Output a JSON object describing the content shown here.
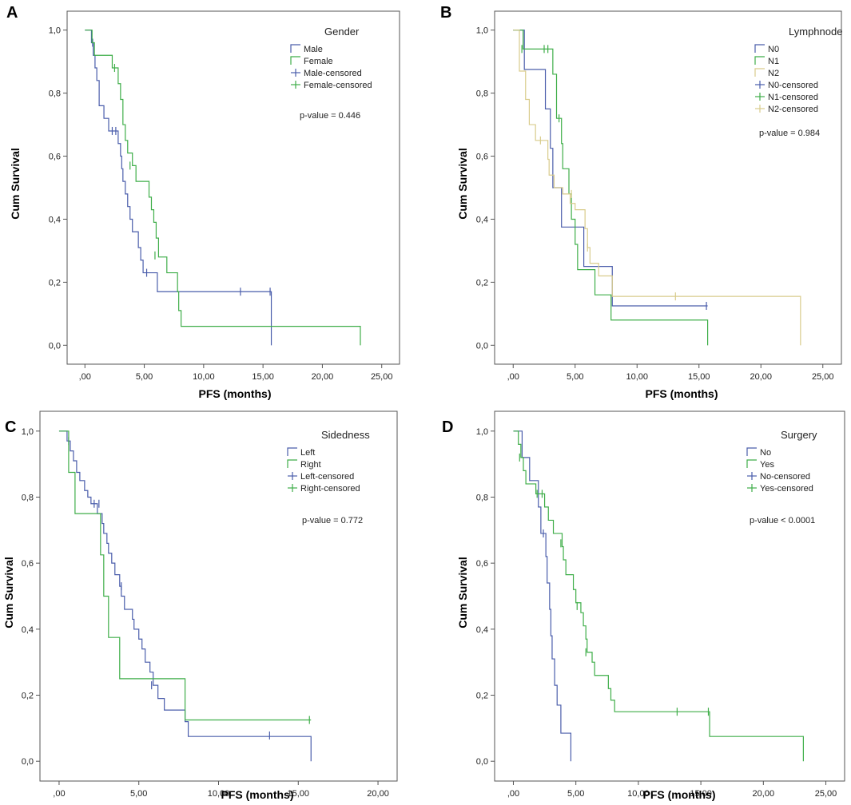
{
  "chart_data": [
    {
      "type": "line",
      "panel": "A",
      "title": "Gender",
      "xlabel": "PFS (months)",
      "ylabel": "Cum Survival",
      "xlim": [
        -1.5,
        26.5
      ],
      "ylim": [
        -0.06,
        1.06
      ],
      "xticks": [
        0,
        5,
        10,
        15,
        20,
        25
      ],
      "xtick_labels": [
        ",00",
        "5,00",
        "10,00",
        "15,00",
        "20,00",
        "25,00"
      ],
      "yticks": [
        0,
        0.2,
        0.4,
        0.6,
        0.8,
        1.0
      ],
      "ytick_labels": [
        "0,0",
        "0,2",
        "0,4",
        "0,6",
        "0,8",
        "1,0"
      ],
      "annotation": "p-value = 0.446",
      "legend": [
        "Male",
        "Female",
        "Male-censored",
        "Female-censored"
      ],
      "series": [
        {
          "name": "Male",
          "color": "#4a5dab",
          "steps": [
            [
              0,
              1.0
            ],
            [
              0.55,
              0.96
            ],
            [
              0.7,
              0.92
            ],
            [
              0.85,
              0.88
            ],
            [
              1.0,
              0.84
            ],
            [
              1.2,
              0.76
            ],
            [
              1.6,
              0.72
            ],
            [
              2.0,
              0.68
            ],
            [
              2.8,
              0.64
            ],
            [
              3.0,
              0.6
            ],
            [
              3.1,
              0.56
            ],
            [
              3.2,
              0.52
            ],
            [
              3.4,
              0.48
            ],
            [
              3.6,
              0.44
            ],
            [
              3.8,
              0.4
            ],
            [
              4.0,
              0.36
            ],
            [
              4.5,
              0.31
            ],
            [
              4.7,
              0.27
            ],
            [
              4.9,
              0.23
            ],
            [
              6.1,
              0.17
            ],
            [
              15.7,
              0.0
            ]
          ],
          "end": 15.7,
          "censored": [
            [
              0.65,
              0.96
            ],
            [
              2.3,
              0.68
            ],
            [
              2.6,
              0.68
            ],
            [
              13.1,
              0.17
            ],
            [
              15.6,
              0.17
            ],
            [
              5.2,
              0.23
            ]
          ]
        },
        {
          "name": "Female",
          "color": "#3fae49",
          "steps": [
            [
              0,
              1.0
            ],
            [
              0.6,
              0.96
            ],
            [
              0.8,
              0.92
            ],
            [
              2.3,
              0.88
            ],
            [
              2.8,
              0.83
            ],
            [
              3.0,
              0.78
            ],
            [
              3.2,
              0.7
            ],
            [
              3.4,
              0.65
            ],
            [
              3.6,
              0.61
            ],
            [
              4.0,
              0.57
            ],
            [
              4.3,
              0.52
            ],
            [
              5.4,
              0.47
            ],
            [
              5.6,
              0.43
            ],
            [
              5.8,
              0.39
            ],
            [
              6.0,
              0.34
            ],
            [
              6.2,
              0.28
            ],
            [
              6.9,
              0.23
            ],
            [
              7.8,
              0.17
            ],
            [
              7.9,
              0.11
            ],
            [
              8.1,
              0.06
            ],
            [
              23.2,
              0.0
            ]
          ],
          "end": 23.2,
          "censored": [
            [
              2.5,
              0.88
            ],
            [
              3.8,
              0.57
            ],
            [
              5.9,
              0.285
            ]
          ]
        }
      ]
    },
    {
      "type": "line",
      "panel": "B",
      "title": "Lymphnode",
      "xlabel": "PFS (months)",
      "ylabel": "Cum Survival",
      "xlim": [
        -1.5,
        26.5
      ],
      "ylim": [
        -0.06,
        1.06
      ],
      "xticks": [
        0,
        5,
        10,
        15,
        20,
        25
      ],
      "xtick_labels": [
        ",00",
        "5,00",
        "10,00",
        "15,00",
        "20,00",
        "25,00"
      ],
      "yticks": [
        0,
        0.2,
        0.4,
        0.6,
        0.8,
        1.0
      ],
      "ytick_labels": [
        "0,0",
        "0,2",
        "0,4",
        "0,6",
        "0,8",
        "1,0"
      ],
      "annotation": "p-value = 0.984",
      "legend": [
        "N0",
        "N1",
        "N2",
        "N0-censored",
        "N1-censored",
        "N2-censored"
      ],
      "series": [
        {
          "name": "N0",
          "color": "#4a5dab",
          "steps": [
            [
              0,
              1.0
            ],
            [
              0.9,
              0.875
            ],
            [
              2.6,
              0.75
            ],
            [
              3.0,
              0.625
            ],
            [
              3.2,
              0.5
            ],
            [
              3.9,
              0.375
            ],
            [
              5.7,
              0.25
            ],
            [
              8.0,
              0.125
            ],
            [
              15.7,
              0.125
            ]
          ],
          "end": 15.7,
          "censored": [
            [
              15.6,
              0.125
            ]
          ]
        },
        {
          "name": "N1",
          "color": "#3fae49",
          "steps": [
            [
              0,
              1.0
            ],
            [
              0.8,
              0.94
            ],
            [
              3.2,
              0.86
            ],
            [
              3.5,
              0.72
            ],
            [
              3.9,
              0.64
            ],
            [
              4.0,
              0.56
            ],
            [
              4.5,
              0.48
            ],
            [
              4.7,
              0.4
            ],
            [
              5.0,
              0.32
            ],
            [
              5.2,
              0.24
            ],
            [
              6.6,
              0.16
            ],
            [
              7.9,
              0.08
            ],
            [
              15.7,
              0.0
            ]
          ],
          "end": 15.7,
          "censored": [
            [
              0.7,
              0.94
            ],
            [
              2.5,
              0.94
            ],
            [
              2.8,
              0.94
            ],
            [
              3.7,
              0.72
            ]
          ]
        },
        {
          "name": "N2",
          "color": "#d9cc8c",
          "steps": [
            [
              0,
              1.0
            ],
            [
              0.5,
              0.87
            ],
            [
              1.0,
              0.78
            ],
            [
              1.3,
              0.7
            ],
            [
              1.8,
              0.65
            ],
            [
              2.8,
              0.59
            ],
            [
              2.9,
              0.54
            ],
            [
              3.3,
              0.5
            ],
            [
              4.0,
              0.48
            ],
            [
              4.6,
              0.45
            ],
            [
              5.0,
              0.43
            ],
            [
              5.8,
              0.37
            ],
            [
              6.0,
              0.31
            ],
            [
              6.2,
              0.26
            ],
            [
              6.9,
              0.22
            ],
            [
              8.0,
              0.155
            ],
            [
              23.2,
              0.0
            ]
          ],
          "end": 23.2,
          "censored": [
            [
              2.2,
              0.65
            ],
            [
              4.7,
              0.48
            ],
            [
              6.0,
              0.31
            ],
            [
              13.1,
              0.155
            ]
          ]
        }
      ]
    },
    {
      "type": "line",
      "panel": "C",
      "title": "Sidedness",
      "xlabel": "PFS (months)",
      "ylabel": "Cum Survival",
      "xlim": [
        -1.2,
        21.2
      ],
      "ylim": [
        -0.06,
        1.06
      ],
      "xticks": [
        0,
        5,
        10,
        15,
        20
      ],
      "xtick_labels": [
        ",00",
        "5,00",
        "10,00",
        "15,00",
        "20,00"
      ],
      "yticks": [
        0,
        0.2,
        0.4,
        0.6,
        0.8,
        1.0
      ],
      "ytick_labels": [
        "0,0",
        "0,2",
        "0,4",
        "0,6",
        "0,8",
        "1,0"
      ],
      "annotation": "p-value = 0.772",
      "legend": [
        "Left",
        "Right",
        "Left-censored",
        "Right-censored"
      ],
      "series": [
        {
          "name": "Left",
          "color": "#4a5dab",
          "steps": [
            [
              0,
              1.0
            ],
            [
              0.5,
              0.97
            ],
            [
              0.7,
              0.94
            ],
            [
              0.9,
              0.91
            ],
            [
              1.1,
              0.875
            ],
            [
              1.3,
              0.85
            ],
            [
              1.6,
              0.82
            ],
            [
              1.8,
              0.8
            ],
            [
              2.0,
              0.78
            ],
            [
              2.4,
              0.75
            ],
            [
              2.7,
              0.72
            ],
            [
              2.8,
              0.69
            ],
            [
              3.0,
              0.66
            ],
            [
              3.1,
              0.63
            ],
            [
              3.3,
              0.6
            ],
            [
              3.5,
              0.565
            ],
            [
              3.8,
              0.53
            ],
            [
              3.9,
              0.5
            ],
            [
              4.1,
              0.46
            ],
            [
              4.6,
              0.43
            ],
            [
              4.7,
              0.4
            ],
            [
              5.0,
              0.37
            ],
            [
              5.2,
              0.34
            ],
            [
              5.4,
              0.3
            ],
            [
              5.7,
              0.27
            ],
            [
              5.9,
              0.23
            ],
            [
              6.2,
              0.19
            ],
            [
              6.6,
              0.155
            ],
            [
              7.9,
              0.12
            ],
            [
              8.1,
              0.075
            ],
            [
              15.8,
              0.0
            ]
          ],
          "end": 15.8,
          "censored": [
            [
              0.6,
              0.97
            ],
            [
              2.2,
              0.78
            ],
            [
              2.5,
              0.78
            ],
            [
              3.9,
              0.53
            ],
            [
              5.8,
              0.23
            ],
            [
              13.2,
              0.078
            ]
          ]
        },
        {
          "name": "Right",
          "color": "#3fae49",
          "steps": [
            [
              0,
              1.0
            ],
            [
              0.6,
              0.875
            ],
            [
              1.0,
              0.75
            ],
            [
              2.6,
              0.625
            ],
            [
              2.8,
              0.5
            ],
            [
              3.1,
              0.375
            ],
            [
              3.8,
              0.25
            ],
            [
              7.9,
              0.125
            ],
            [
              15.8,
              0.125
            ]
          ],
          "end": 15.8,
          "censored": [
            [
              15.7,
              0.125
            ]
          ]
        }
      ]
    },
    {
      "type": "line",
      "panel": "D",
      "title": "Surgery",
      "xlabel": "PFS (months)",
      "ylabel": "Cum Survival",
      "xlim": [
        -1.5,
        26.5
      ],
      "ylim": [
        -0.06,
        1.06
      ],
      "xticks": [
        0,
        5,
        10,
        15,
        20,
        25
      ],
      "xtick_labels": [
        ",00",
        "5,00",
        "10,00",
        "15,00",
        "20,00",
        "25,00"
      ],
      "yticks": [
        0,
        0.2,
        0.4,
        0.6,
        0.8,
        1.0
      ],
      "ytick_labels": [
        "0,0",
        "0,2",
        "0,4",
        "0,6",
        "0,8",
        "1,0"
      ],
      "annotation": "p-value < 0.0001",
      "legend": [
        "No",
        "Yes",
        "No-censored",
        "Yes-censored"
      ],
      "series": [
        {
          "name": "No",
          "color": "#4a5dab",
          "steps": [
            [
              0,
              1.0
            ],
            [
              0.7,
              0.92
            ],
            [
              1.3,
              0.85
            ],
            [
              2.0,
              0.77
            ],
            [
              2.2,
              0.69
            ],
            [
              2.6,
              0.62
            ],
            [
              2.7,
              0.54
            ],
            [
              2.9,
              0.46
            ],
            [
              3.0,
              0.38
            ],
            [
              3.1,
              0.31
            ],
            [
              3.3,
              0.23
            ],
            [
              3.5,
              0.17
            ],
            [
              3.8,
              0.085
            ],
            [
              4.6,
              0.0
            ]
          ],
          "end": 4.6,
          "censored": [
            [
              2.4,
              0.69
            ]
          ]
        },
        {
          "name": "Yes",
          "color": "#3fae49",
          "steps": [
            [
              0,
              1.0
            ],
            [
              0.4,
              0.96
            ],
            [
              0.6,
              0.92
            ],
            [
              0.8,
              0.88
            ],
            [
              1.0,
              0.84
            ],
            [
              1.8,
              0.81
            ],
            [
              2.5,
              0.77
            ],
            [
              2.8,
              0.73
            ],
            [
              3.2,
              0.69
            ],
            [
              3.9,
              0.65
            ],
            [
              4.0,
              0.61
            ],
            [
              4.2,
              0.565
            ],
            [
              4.8,
              0.52
            ],
            [
              5.0,
              0.48
            ],
            [
              5.4,
              0.45
            ],
            [
              5.6,
              0.41
            ],
            [
              5.8,
              0.37
            ],
            [
              5.9,
              0.33
            ],
            [
              6.3,
              0.3
            ],
            [
              6.5,
              0.26
            ],
            [
              7.6,
              0.22
            ],
            [
              7.8,
              0.185
            ],
            [
              8.1,
              0.15
            ],
            [
              15.7,
              0.075
            ],
            [
              23.2,
              0.0
            ]
          ],
          "end": 23.2,
          "censored": [
            [
              0.5,
              0.92
            ],
            [
              1.9,
              0.81
            ],
            [
              2.3,
              0.81
            ],
            [
              3.8,
              0.66
            ],
            [
              5.1,
              0.47
            ],
            [
              5.8,
              0.33
            ],
            [
              13.1,
              0.15
            ],
            [
              15.6,
              0.15
            ]
          ]
        }
      ]
    }
  ]
}
